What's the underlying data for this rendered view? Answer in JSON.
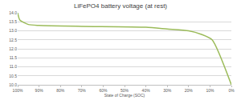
{
  "chart_data": {
    "type": "line",
    "title": "LiFePO4 battery voltage (at rest)",
    "x_label": "State of Charge (SOC)",
    "x": [
      100,
      99,
      95,
      90,
      70,
      40,
      30,
      20,
      14,
      9,
      0
    ],
    "values": [
      14.0,
      13.6,
      13.35,
      13.3,
      13.25,
      13.2,
      13.1,
      13.0,
      12.8,
      12.5,
      10.0
    ],
    "color": "#9bbb59",
    "xlim": [
      100,
      0
    ],
    "xticks": [
      {
        "value": 100,
        "label": "100%"
      },
      {
        "value": 90,
        "label": "90%"
      },
      {
        "value": 80,
        "label": "80%"
      },
      {
        "value": 70,
        "label": "70%"
      },
      {
        "value": 60,
        "label": "60%"
      },
      {
        "value": 50,
        "label": "50%"
      },
      {
        "value": 40,
        "label": "40%"
      },
      {
        "value": 30,
        "label": "30%"
      },
      {
        "value": 20,
        "label": "20%"
      },
      {
        "value": 10,
        "label": "10%"
      },
      {
        "value": 0,
        "label": "0%"
      }
    ],
    "ylim": [
      10,
      14
    ],
    "yticks": [
      {
        "value": 10,
        "label": "10.0"
      },
      {
        "value": 10.5,
        "label": "10.5"
      },
      {
        "value": 11,
        "label": "11.0"
      },
      {
        "value": 11.5,
        "label": "11.5"
      },
      {
        "value": 12,
        "label": "12.0"
      },
      {
        "value": 12.5,
        "label": "12.5"
      },
      {
        "value": 13,
        "label": "13.0"
      },
      {
        "value": 13.5,
        "label": "13.5"
      },
      {
        "value": 14,
        "label": "14.0"
      }
    ],
    "grid": true
  }
}
